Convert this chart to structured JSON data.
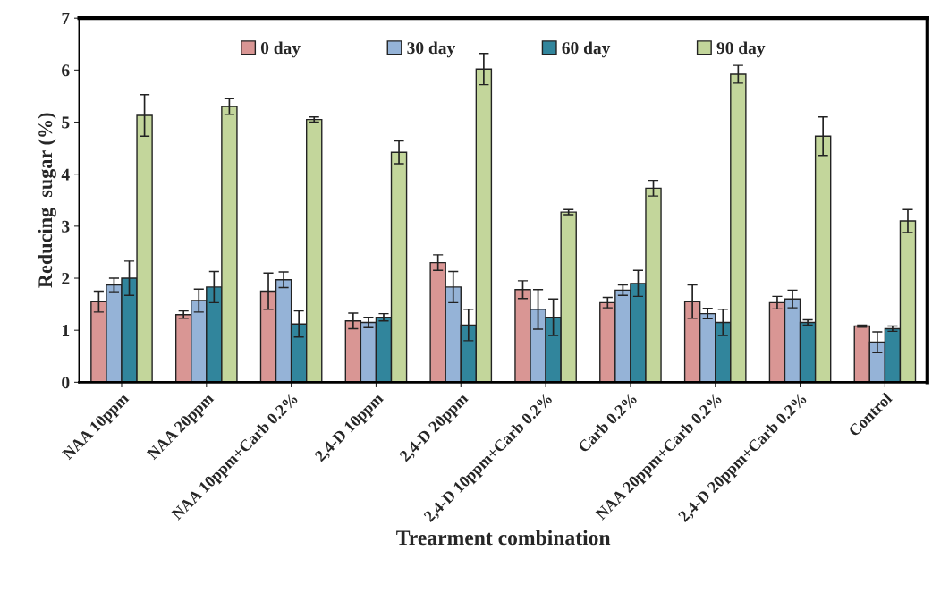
{
  "chart_data": {
    "type": "bar",
    "xlabel": "Trearment combination",
    "ylabel": "Reducing  sugar (%)",
    "categories": [
      "NAA 10ppm",
      "NAA 20ppm",
      "NAA 10ppm+Carb 0.2%",
      "2,4-D 10ppm",
      "2,4-D 20ppm",
      "2,4-D 10ppm+Carb 0.2%",
      "Carb 0.2%",
      "NAA 20ppm+Carb 0.2%",
      "2,4-D 20ppm+Carb 0.2%",
      "Control"
    ],
    "series": [
      {
        "name": "0 day",
        "color": "#d99694",
        "values": [
          1.55,
          1.3,
          1.75,
          1.18,
          2.3,
          1.78,
          1.53,
          1.55,
          1.53,
          1.08
        ],
        "errors": [
          0.2,
          0.07,
          0.35,
          0.15,
          0.15,
          0.17,
          0.1,
          0.32,
          0.12,
          0.02
        ]
      },
      {
        "name": "30 day",
        "color": "#95b3d7",
        "values": [
          1.87,
          1.57,
          1.97,
          1.15,
          1.83,
          1.4,
          1.77,
          1.32,
          1.6,
          0.77
        ],
        "errors": [
          0.13,
          0.22,
          0.15,
          0.1,
          0.3,
          0.38,
          0.1,
          0.1,
          0.17,
          0.2
        ]
      },
      {
        "name": "60 day",
        "color": "#31859c",
        "values": [
          2.0,
          1.83,
          1.12,
          1.25,
          1.1,
          1.25,
          1.9,
          1.15,
          1.15,
          1.03
        ],
        "errors": [
          0.33,
          0.3,
          0.25,
          0.07,
          0.3,
          0.35,
          0.25,
          0.25,
          0.05,
          0.05
        ]
      },
      {
        "name": "90 day",
        "color": "#c3d69b",
        "values": [
          5.13,
          5.3,
          5.05,
          4.42,
          6.02,
          3.27,
          3.73,
          5.92,
          4.73,
          3.1
        ],
        "errors": [
          0.4,
          0.15,
          0.05,
          0.22,
          0.3,
          0.05,
          0.15,
          0.17,
          0.37,
          0.22
        ]
      }
    ],
    "ylim": [
      0,
      7
    ],
    "yticks": [
      0,
      1,
      2,
      3,
      4,
      5,
      6,
      7
    ],
    "grid": false,
    "legend": "top"
  }
}
